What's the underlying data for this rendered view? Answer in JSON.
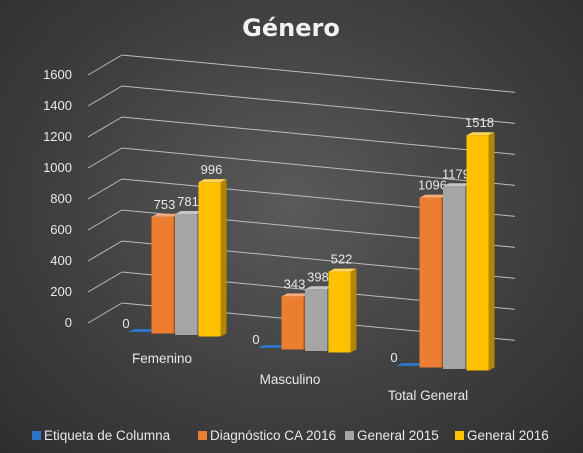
{
  "chart_data": {
    "type": "bar",
    "title": "Género",
    "categories": [
      "Femenino",
      "Masculino",
      "Total General"
    ],
    "series": [
      {
        "name": "Etiqueta de Columna",
        "values": [
          0,
          0,
          0
        ],
        "labels": [
          "0",
          "0",
          "0"
        ],
        "color": "#2e74c9"
      },
      {
        "name": "Diagnóstico CA 2016",
        "values": [
          753,
          343,
          1096
        ],
        "labels": [
          "753",
          "343",
          "1096"
        ],
        "color": "#ed7d31"
      },
      {
        "name": "General 2015",
        "values": [
          781,
          398,
          1179
        ],
        "labels": [
          "781",
          "398",
          "1179"
        ],
        "color": "#a5a5a5"
      },
      {
        "name": "General 2016",
        "values": [
          996,
          522,
          1518
        ],
        "labels": [
          "996",
          "522",
          "1518"
        ],
        "color": "#ffc000"
      }
    ],
    "ylim": [
      0,
      1600
    ],
    "yticks": [
      "0",
      "200",
      "400",
      "600",
      "800",
      "1000",
      "1200",
      "1400",
      "1600"
    ],
    "xlabel": "",
    "ylabel": "",
    "grid": true,
    "legend": "bottom",
    "style": "3d-clustered-column"
  }
}
